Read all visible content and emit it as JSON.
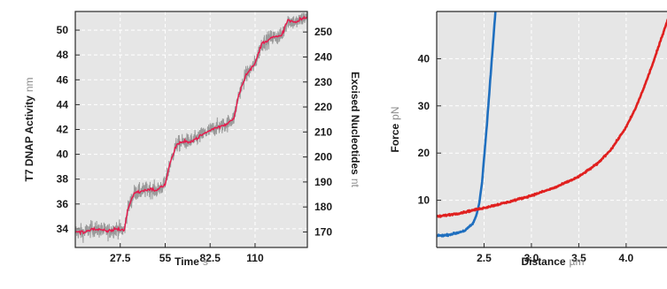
{
  "chart_data": [
    {
      "type": "line",
      "xlabel": "Time",
      "xunit": "s",
      "ylabel": "T7 DNAP Activity",
      "yunit": "nm",
      "y2label": "Excised Nucleotides",
      "y2unit": "nt",
      "xlim": [
        0,
        142
      ],
      "ylim": [
        32.5,
        51.5
      ],
      "y2lim": [
        163.8,
        258.2
      ],
      "xticks": [
        "27.5",
        "55",
        "82.5",
        "110"
      ],
      "yticks": [
        "34",
        "36",
        "38",
        "40",
        "42",
        "44",
        "46",
        "48",
        "50"
      ],
      "y2ticks": [
        "170",
        "180",
        "190",
        "200",
        "210",
        "220",
        "230",
        "240",
        "250"
      ],
      "grid": true,
      "plot_background": "#e6e6e6",
      "series": [
        {
          "role": "raw trace",
          "color": "#8c8c8c",
          "x": [
            0,
            5,
            10,
            15,
            20,
            25,
            30,
            32,
            36,
            40,
            45,
            50,
            55,
            58,
            62,
            67,
            72,
            78,
            85,
            88,
            92,
            97,
            100,
            104,
            110,
            114,
            120,
            126,
            130,
            135,
            140
          ],
          "y": [
            33.8,
            33.7,
            34.0,
            33.9,
            33.8,
            34.0,
            33.9,
            35.5,
            36.9,
            37.0,
            37.2,
            37.1,
            37.6,
            39.3,
            40.8,
            41.0,
            41.1,
            41.6,
            42.1,
            42.2,
            42.4,
            42.9,
            44.8,
            46.3,
            47.3,
            48.9,
            49.4,
            49.5,
            50.8,
            50.6,
            51.0
          ]
        },
        {
          "role": "filtered trace",
          "color": "#e8174b",
          "x": [
            0,
            5,
            10,
            15,
            20,
            25,
            30,
            32,
            36,
            40,
            45,
            50,
            55,
            58,
            62,
            67,
            72,
            78,
            85,
            88,
            92,
            97,
            100,
            104,
            110,
            114,
            120,
            126,
            130,
            135,
            140
          ],
          "y": [
            33.8,
            33.7,
            34.0,
            33.9,
            33.8,
            34.0,
            33.9,
            35.5,
            36.9,
            37.0,
            37.2,
            37.1,
            37.6,
            39.3,
            40.8,
            41.0,
            41.1,
            41.6,
            42.1,
            42.2,
            42.4,
            42.9,
            44.8,
            46.3,
            47.3,
            48.9,
            49.4,
            49.5,
            50.8,
            50.6,
            51.0
          ]
        }
      ]
    },
    {
      "type": "line",
      "xlabel": "Distance",
      "xunit": "µm",
      "ylabel": "Force",
      "yunit": "pN",
      "xlim": [
        2.0,
        4.45
      ],
      "ylim": [
        0,
        50
      ],
      "xticks": [
        "2.5",
        "3.0",
        "3.5",
        "4.0"
      ],
      "yticks": [
        "10",
        "20",
        "30",
        "40"
      ],
      "grid": true,
      "plot_background": "#e6e6e6",
      "series": [
        {
          "color": "#1f6fbf",
          "x": [
            2.0,
            2.1,
            2.2,
            2.3,
            2.38,
            2.42,
            2.45,
            2.48,
            2.5,
            2.53,
            2.56,
            2.59,
            2.62
          ],
          "y": [
            2.5,
            2.6,
            3.0,
            3.6,
            5.0,
            6.8,
            9.5,
            14.0,
            19.0,
            26.0,
            34.0,
            42.0,
            50.0
          ]
        },
        {
          "color": "#e0201f",
          "x": [
            2.0,
            2.25,
            2.5,
            2.75,
            3.0,
            3.25,
            3.5,
            3.7,
            3.85,
            4.0,
            4.1,
            4.2,
            4.3,
            4.4,
            4.45
          ],
          "y": [
            6.5,
            7.3,
            8.4,
            9.6,
            11.0,
            12.7,
            15.0,
            17.8,
            21.0,
            25.5,
            29.5,
            34.5,
            40.0,
            46.0,
            49.0
          ]
        }
      ]
    }
  ]
}
